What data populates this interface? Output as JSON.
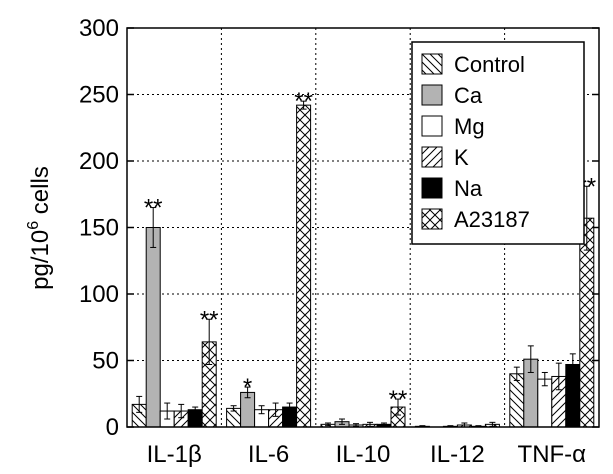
{
  "chart_data": {
    "type": "bar",
    "ylabel_main": "pg/10",
    "ylabel_sup": "6",
    "ylabel_tail": " cells",
    "ylim": [
      0,
      300
    ],
    "yticks": [
      "0",
      "50",
      "100",
      "150",
      "200",
      "250",
      "300"
    ],
    "categories": [
      "IL-1β",
      "IL-6",
      "IL-10",
      "IL-12",
      "TNF-α"
    ],
    "grid": true,
    "legend_position": "top-right",
    "series": [
      {
        "name": "Control",
        "pattern": "hatch-back",
        "values": [
          17,
          14,
          2,
          0.5,
          40
        ],
        "errors": [
          6,
          2,
          1,
          0.5,
          5
        ]
      },
      {
        "name": "Ca",
        "pattern": "solid-gray",
        "values": [
          150,
          26,
          4,
          0,
          51
        ],
        "errors": [
          15,
          4,
          2,
          0,
          10
        ]
      },
      {
        "name": "Mg",
        "pattern": "white",
        "values": [
          12,
          13,
          1.5,
          0.5,
          36
        ],
        "errors": [
          6,
          3,
          1,
          0.5,
          5
        ]
      },
      {
        "name": "K",
        "pattern": "hatch-fwd",
        "values": [
          12,
          13,
          2,
          1.5,
          38
        ],
        "errors": [
          5,
          5,
          1.5,
          1.5,
          10
        ]
      },
      {
        "name": "Na",
        "pattern": "solid-black",
        "values": [
          13,
          15,
          2,
          0.5,
          47
        ],
        "errors": [
          2,
          3,
          1,
          0.5,
          8
        ]
      },
      {
        "name": "A23187",
        "pattern": "crosshatch",
        "values": [
          64,
          242,
          15,
          2,
          157
        ],
        "errors": [
          17,
          3,
          6,
          1.5,
          24
        ]
      }
    ],
    "annotations": [
      {
        "category": 0,
        "series": 1,
        "text": "**"
      },
      {
        "category": 0,
        "series": 5,
        "text": "**"
      },
      {
        "category": 1,
        "series": 1,
        "text": "*"
      },
      {
        "category": 1,
        "series": 5,
        "text": "**"
      },
      {
        "category": 2,
        "series": 5,
        "text": "**"
      },
      {
        "category": 4,
        "series": 5,
        "text": "**"
      }
    ],
    "colors": {
      "gray": "#b3b3b3",
      "black": "#000000"
    }
  }
}
